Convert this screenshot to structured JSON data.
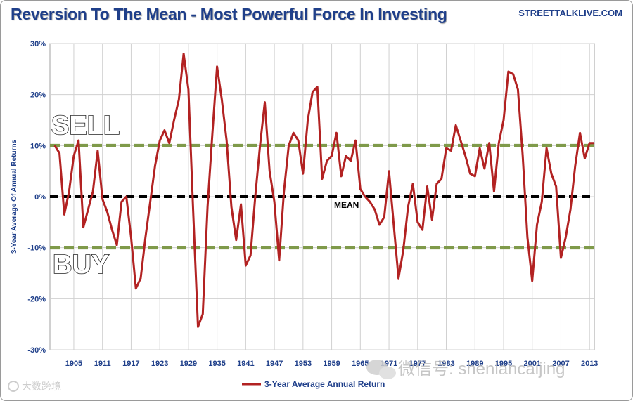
{
  "header": {
    "title": "Reversion To The Mean - Most Powerful Force In Investing",
    "source": "STREETTALKLIVE.COM"
  },
  "annotations": {
    "sell": "SELL",
    "buy": "BUY",
    "mean": "MEAN"
  },
  "watermarks": {
    "left": "大数跨境",
    "right": "微信号: shenlancaijing"
  },
  "colors": {
    "series": "#b22222",
    "mean_line": "#000000",
    "band_lines": "#7f9a4a",
    "grid": "#d0d0d0",
    "text": "#1f3f8a"
  },
  "chart_data": {
    "type": "line",
    "title": "Reversion To The Mean - Most Powerful Force In Investing",
    "ylabel": "3-Year Average Of Annual Returns",
    "xlabel": "",
    "ylim": [
      -30,
      30
    ],
    "xlim": [
      1900,
      2014
    ],
    "y_ticks": [
      30,
      20,
      10,
      0,
      -10,
      -20,
      -30
    ],
    "y_tick_labels": [
      "30%",
      "20%",
      "10%",
      "0%",
      "-10%",
      "-20%",
      "-30%"
    ],
    "x_ticks": [
      1905,
      1911,
      1917,
      1923,
      1929,
      1935,
      1941,
      1947,
      1953,
      1959,
      1965,
      1971,
      1977,
      1983,
      1989,
      1995,
      2001,
      2007,
      2013
    ],
    "x_tick_labels": [
      "1905",
      "1911",
      "1917",
      "1923",
      "1929",
      "1935",
      "1941",
      "1947",
      "1953",
      "1959",
      "1965",
      "1971",
      "1977",
      "1983",
      "1989",
      "1995",
      "2001",
      "2007",
      "2013"
    ],
    "grid": true,
    "legend": "bottom-center",
    "reference_lines": [
      {
        "label": "SELL",
        "y": 10
      },
      {
        "label": "MEAN",
        "y": 0
      },
      {
        "label": "BUY",
        "y": -10
      }
    ],
    "series": [
      {
        "name": "3-Year Average Annual Return",
        "x": [
          1901,
          1902,
          1903,
          1904,
          1905,
          1906,
          1907,
          1908,
          1909,
          1910,
          1911,
          1912,
          1913,
          1914,
          1915,
          1916,
          1917,
          1918,
          1919,
          1920,
          1921,
          1922,
          1923,
          1924,
          1925,
          1926,
          1927,
          1928,
          1929,
          1930,
          1931,
          1932,
          1933,
          1934,
          1935,
          1936,
          1937,
          1938,
          1939,
          1940,
          1941,
          1942,
          1943,
          1944,
          1945,
          1946,
          1947,
          1948,
          1949,
          1950,
          1951,
          1952,
          1953,
          1954,
          1955,
          1956,
          1957,
          1958,
          1959,
          1960,
          1961,
          1962,
          1963,
          1964,
          1965,
          1966,
          1967,
          1968,
          1969,
          1970,
          1971,
          1972,
          1973,
          1974,
          1975,
          1976,
          1977,
          1978,
          1979,
          1980,
          1981,
          1982,
          1983,
          1984,
          1985,
          1986,
          1987,
          1988,
          1989,
          1990,
          1991,
          1992,
          1993,
          1994,
          1995,
          1996,
          1997,
          1998,
          1999,
          2000,
          2001,
          2002,
          2003,
          2004,
          2005,
          2006,
          2007,
          2008,
          2009,
          2010,
          2011,
          2012,
          2013,
          2014
        ],
        "values": [
          10,
          8.5,
          -3.5,
          1,
          8,
          11,
          -6,
          -2.5,
          1,
          9,
          -0.5,
          -3,
          -6.5,
          -9.5,
          -1,
          0,
          -8,
          -18,
          -16,
          -8,
          -1,
          6,
          11,
          13,
          10.5,
          15,
          19,
          28,
          21,
          -3,
          -25.5,
          -23,
          -2,
          12,
          25.5,
          19,
          11,
          -2,
          -8.5,
          -1.5,
          -13.5,
          -11.5,
          0,
          10,
          18.5,
          5,
          -1,
          -12.5,
          1,
          10,
          12.5,
          11,
          4.5,
          15,
          20.5,
          21.5,
          3.5,
          7,
          8,
          12.5,
          4,
          8,
          7,
          11,
          1.5,
          0,
          -1,
          -2.5,
          -5.5,
          -4,
          5,
          -5.5,
          -16,
          -10.5,
          -2,
          2.5,
          -5,
          -6.5,
          2,
          -4.5,
          2.5,
          3.5,
          9.5,
          9,
          14,
          11,
          8,
          4.5,
          4,
          9.5,
          5.5,
          10.5,
          1,
          10.5,
          15,
          24.5,
          24,
          21,
          8,
          -8,
          -16.5,
          -5.5,
          -1,
          9.5,
          4.5,
          2,
          -12,
          -8,
          -2.5,
          6,
          12.5,
          7.5,
          10.5,
          10.5
        ]
      }
    ]
  },
  "legend": {
    "label": "3-Year Average Annual Return"
  }
}
